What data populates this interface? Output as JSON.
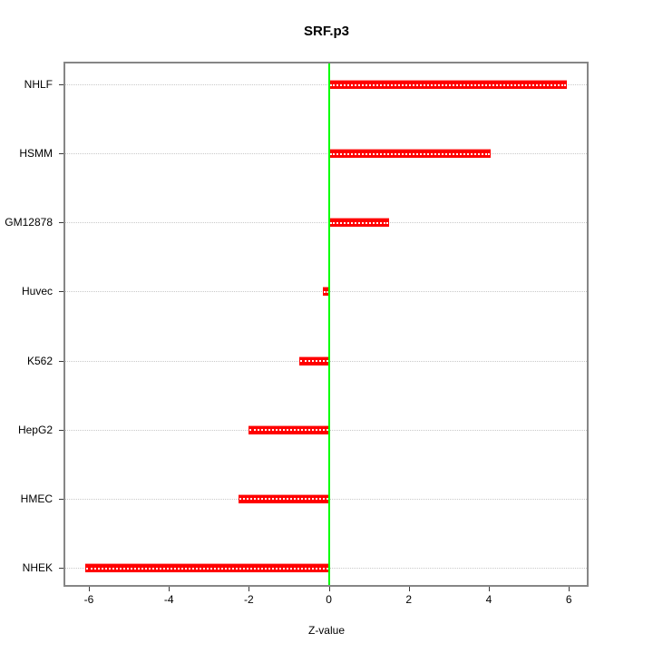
{
  "figure": {
    "title": "SRF.p3",
    "xlabel": "Z-value"
  },
  "chart_data": {
    "type": "bar",
    "orientation": "horizontal",
    "title": "SRF.p3",
    "xlabel": "Z-value",
    "ylabel": "",
    "categories": [
      "NHLF",
      "HSMM",
      "GM12878",
      "Huvec",
      "K562",
      "HepG2",
      "HMEC",
      "NHEK"
    ],
    "values": [
      5.95,
      4.05,
      1.5,
      -0.15,
      -0.75,
      -2.0,
      -2.25,
      -6.1
    ],
    "x_ticks": [
      -6,
      -4,
      -2,
      0,
      2,
      4,
      6
    ],
    "x_tick_labels": [
      "-6",
      "-4",
      "-2",
      "0",
      "2",
      "4",
      "6"
    ],
    "xlim": [
      -6.59,
      6.45
    ],
    "zero_reference_line": 0,
    "grid": "horizontal dotted line per category",
    "legend": "none",
    "colors": {
      "bar": "#FF0000",
      "bar_edge_highlight": "#FF9999",
      "bar_center_dots": "#FFFFFF",
      "zero_line": "#00FF00",
      "plot_border": "#868686",
      "grid_line": "#C9C9C9",
      "tick": "#3A3A3A",
      "text": "#000000",
      "background": "#FFFFFF"
    }
  }
}
